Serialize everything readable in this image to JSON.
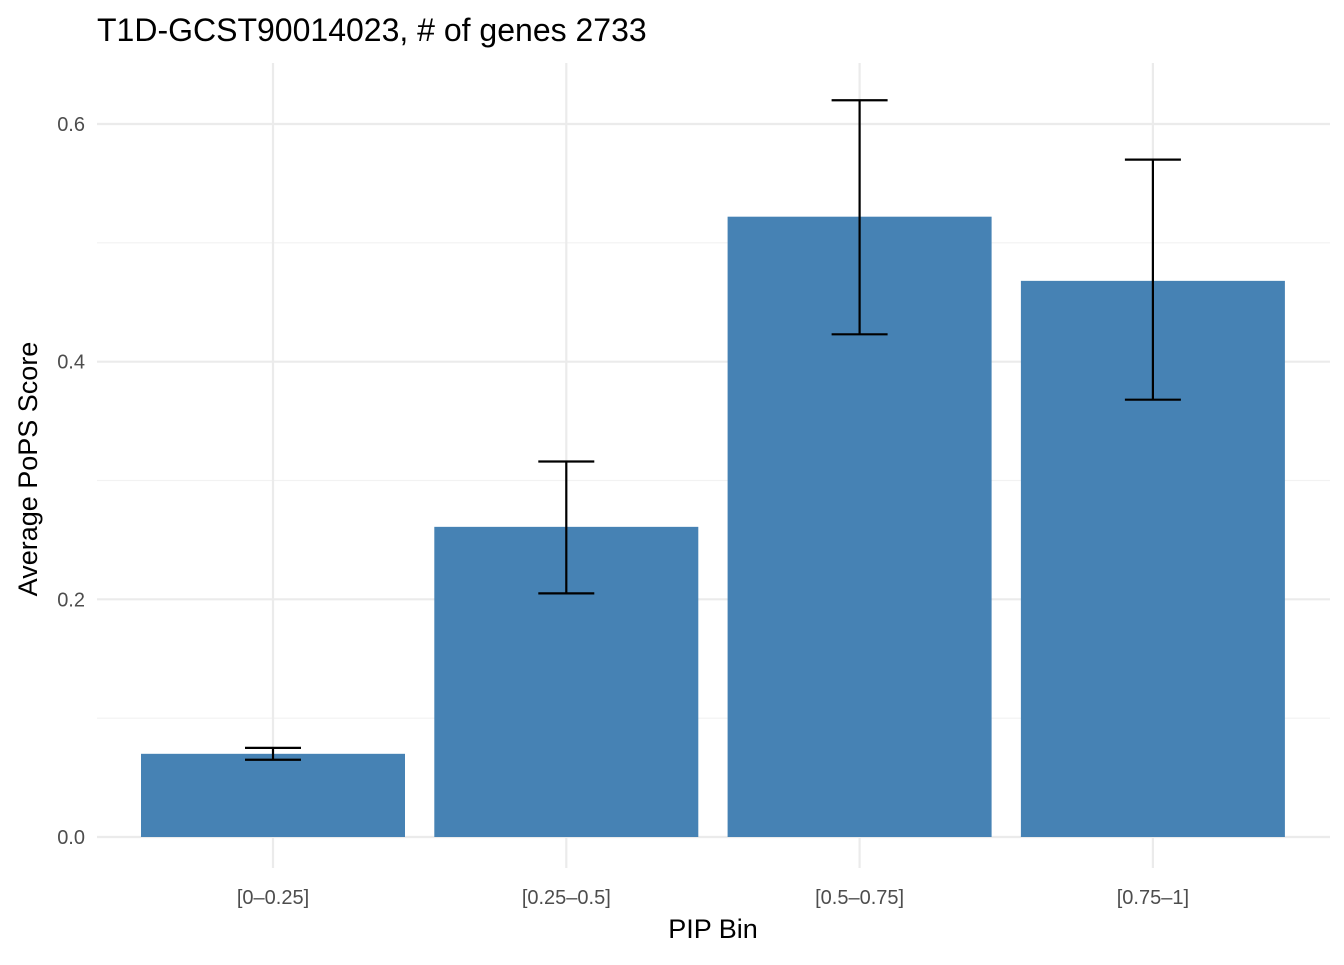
{
  "chart_data": {
    "type": "bar",
    "title": "T1D-GCST90014023, # of genes 2733",
    "xlabel": "PIP Bin",
    "ylabel": "Average PoPS Score",
    "categories": [
      "[0–0.25]",
      "[0.25–0.5]",
      "[0.5–0.75]",
      "[0.75–1]"
    ],
    "values": [
      0.07,
      0.261,
      0.522,
      0.468
    ],
    "error_low": [
      0.065,
      0.205,
      0.423,
      0.368
    ],
    "error_high": [
      0.075,
      0.316,
      0.62,
      0.57
    ],
    "yticks": [
      0.0,
      0.2,
      0.4,
      0.6
    ],
    "ytick_labels": [
      "0.0",
      "0.2",
      "0.4",
      "0.6"
    ],
    "ylim": [
      -0.027,
      0.652
    ],
    "grid": true,
    "bar_color": "#4682B4",
    "errorbar_color": "#000000"
  }
}
